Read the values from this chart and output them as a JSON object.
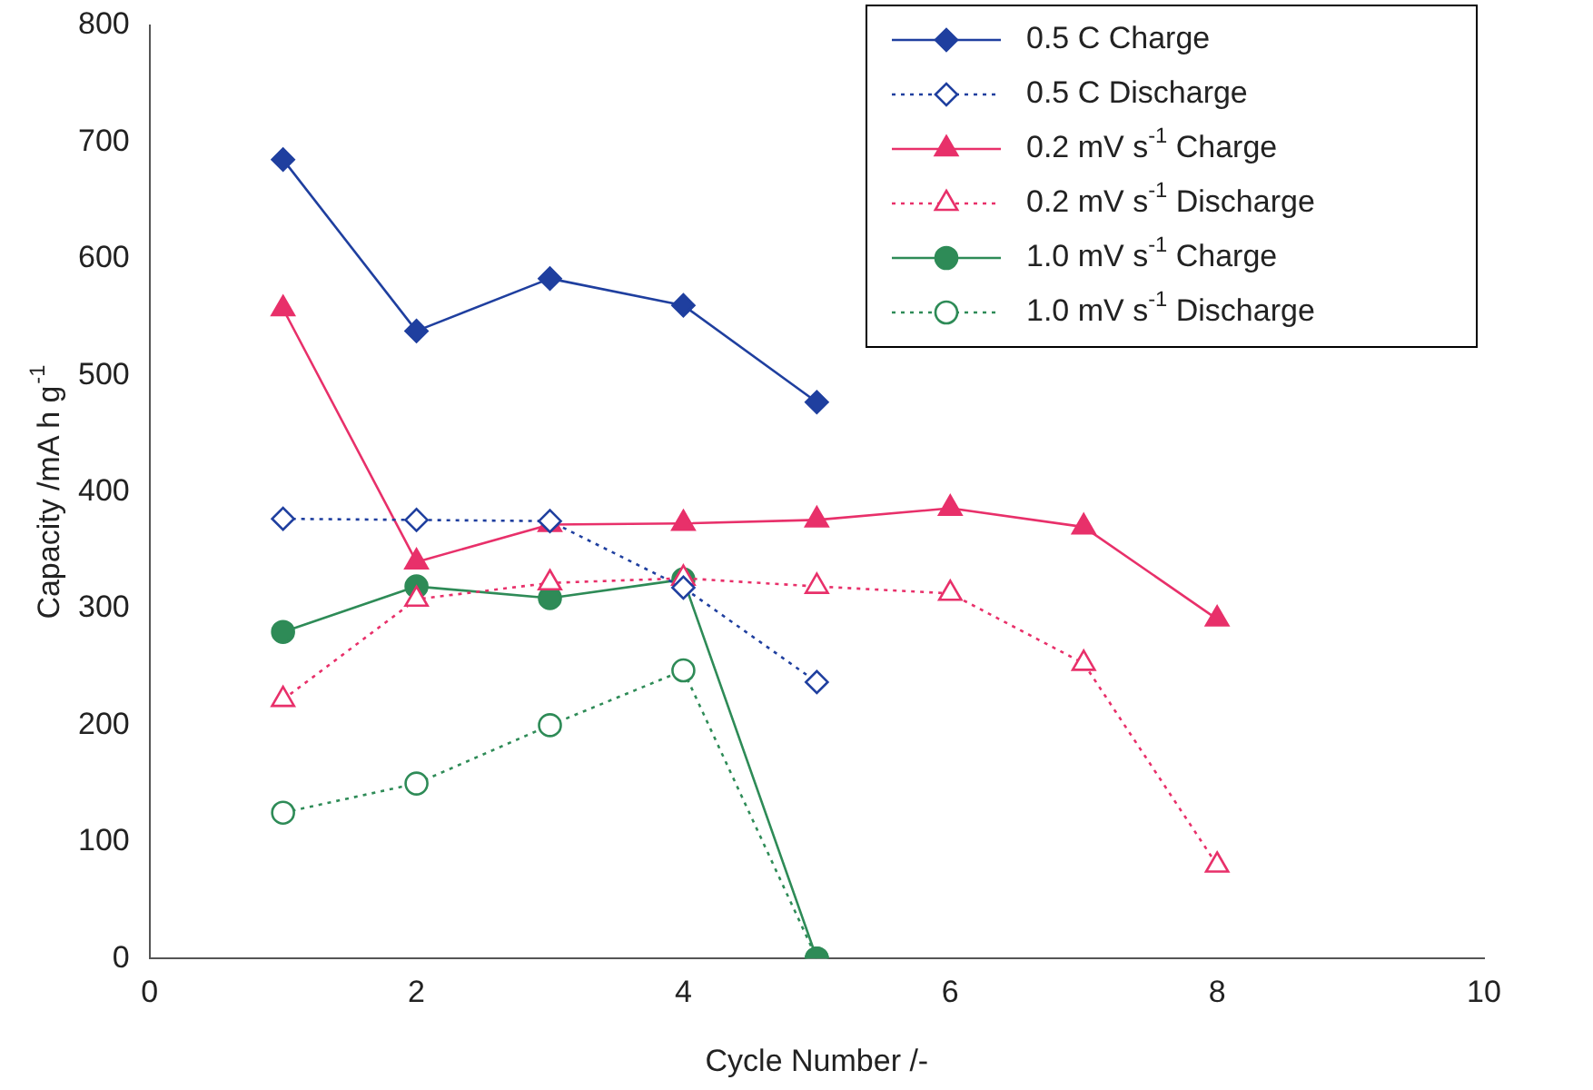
{
  "chart_data": {
    "type": "line",
    "xlabel": "Cycle Number /-",
    "ylabel": "Capacity /mA h g$^{-1}$",
    "xlim": [
      0,
      10
    ],
    "xticks": [
      0,
      2,
      4,
      6,
      8,
      10
    ],
    "ylim": [
      0,
      800
    ],
    "yticks": [
      0,
      100,
      200,
      300,
      400,
      500,
      600,
      700,
      800
    ],
    "grid": false,
    "legend": "top right",
    "series": [
      {
        "name": "0.5 C Charge",
        "color": "#1f3f9f",
        "marker": "diamond",
        "line_style": "solid",
        "x": [
          1,
          2,
          3,
          4,
          5
        ],
        "values": [
          685,
          538,
          583,
          560,
          477
        ]
      },
      {
        "name": "0.5 C Discharge",
        "color": "#1f3f9f",
        "marker": "diamond",
        "line_style": "dotted",
        "x": [
          1,
          2,
          3,
          4,
          5
        ],
        "values": [
          377,
          376,
          375,
          318,
          237
        ]
      },
      {
        "name": "0.2 mV s$^{-1}$ Charge",
        "color": "#e8306a",
        "marker": "triangle",
        "line_style": "solid",
        "x": [
          1,
          2,
          3,
          4,
          5,
          6,
          7,
          8
        ],
        "values": [
          557,
          340,
          372,
          373,
          376,
          386,
          370,
          291
        ]
      },
      {
        "name": "0.2 mV s$^{-1}$ Discharge",
        "color": "#e8306a",
        "marker": "triangle",
        "line_style": "dotted",
        "x": [
          1,
          2,
          3,
          4,
          5,
          6,
          7,
          8
        ],
        "values": [
          222,
          308,
          322,
          326,
          319,
          313,
          253,
          80
        ]
      },
      {
        "name": "1.0 mV s$^{-1}$ Charge",
        "color": "#2e8b57",
        "marker": "circle",
        "line_style": "solid",
        "x": [
          1,
          2,
          3,
          4,
          5
        ],
        "values": [
          280,
          319,
          309,
          325,
          0
        ]
      },
      {
        "name": "1.0 mV s$^{-1}$ Discharge",
        "color": "#2e8b57",
        "marker": "circle",
        "line_style": "dotted",
        "x": [
          1,
          2,
          3,
          4,
          5
        ],
        "values": [
          125,
          150,
          200,
          247,
          0
        ]
      }
    ]
  }
}
